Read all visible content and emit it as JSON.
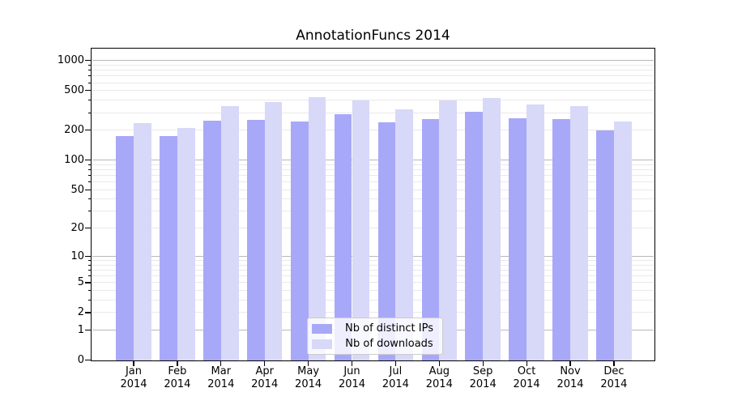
{
  "chart_data": {
    "type": "bar",
    "title": "AnnotationFuncs 2014",
    "categories": [
      {
        "month": "Jan",
        "year": "2014"
      },
      {
        "month": "Feb",
        "year": "2014"
      },
      {
        "month": "Mar",
        "year": "2014"
      },
      {
        "month": "Apr",
        "year": "2014"
      },
      {
        "month": "May",
        "year": "2014"
      },
      {
        "month": "Jun",
        "year": "2014"
      },
      {
        "month": "Jul",
        "year": "2014"
      },
      {
        "month": "Aug",
        "year": "2014"
      },
      {
        "month": "Sep",
        "year": "2014"
      },
      {
        "month": "Oct",
        "year": "2014"
      },
      {
        "month": "Nov",
        "year": "2014"
      },
      {
        "month": "Dec",
        "year": "2014"
      }
    ],
    "series": [
      {
        "name": "Nb of distinct IPs",
        "color": "#a8a8f8",
        "values": [
          176,
          176,
          247,
          254,
          244,
          292,
          240,
          258,
          306,
          262,
          257,
          198
        ]
      },
      {
        "name": "Nb of downloads",
        "color": "#d8d8f8",
        "values": [
          237,
          212,
          350,
          381,
          428,
          395,
          326,
          398,
          420,
          360,
          348,
          246
        ]
      }
    ],
    "yscale": "log1p",
    "ylim": [
      0,
      1300
    ],
    "yticks_labeled": [
      0,
      1,
      2,
      5,
      10,
      20,
      50,
      100,
      200,
      500,
      1000
    ],
    "yticks_minor": [
      3,
      4,
      6,
      7,
      8,
      9,
      30,
      40,
      60,
      70,
      80,
      90,
      300,
      400,
      600,
      700,
      800,
      900
    ],
    "gridlines": {
      "major": [
        1,
        10,
        100,
        1000
      ],
      "minor": [
        2,
        3,
        4,
        5,
        6,
        7,
        8,
        9,
        20,
        30,
        40,
        50,
        60,
        70,
        80,
        90,
        200,
        300,
        400,
        500,
        600,
        700,
        800,
        900
      ]
    },
    "legend": {
      "position": "lower center"
    },
    "colors": {
      "grid_major": "#b9b9b9",
      "grid_minor": "#e9e9e9",
      "spine": "#000000",
      "text": "#000000",
      "legend_border": "#cccccc",
      "legend_bg": "rgba(255,255,255,0.8)",
      "background": "#ffffff"
    }
  }
}
